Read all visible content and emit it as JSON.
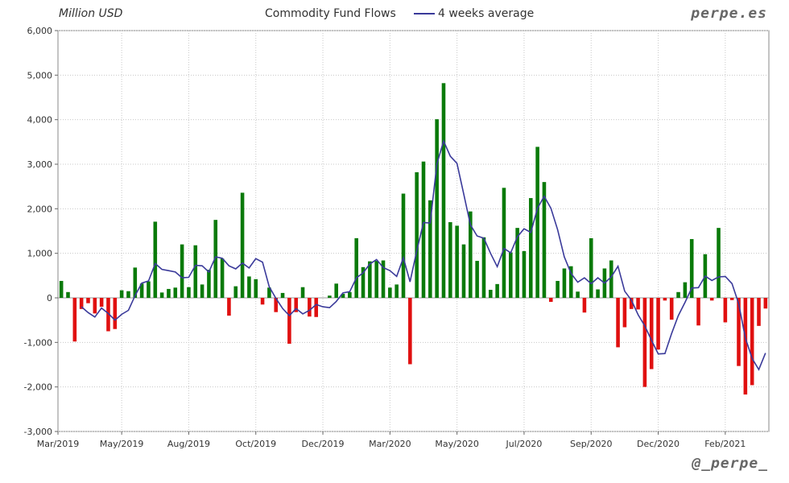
{
  "unit_label": "Million USD",
  "title": "Commodity Fund Flows",
  "legend_label": "4 weeks average",
  "brand_top": "perpe.es",
  "brand_bottom": "@_perpe_",
  "colors": {
    "positive": "#0a7a0a",
    "negative": "#e01010",
    "line": "#3a3a9a",
    "grid": "#c8c8c8"
  },
  "chart_data": {
    "type": "bar",
    "title": "Commodity Fund Flows",
    "ylabel": "Million USD",
    "ylim": [
      -3000,
      6000
    ],
    "yticks": [
      "-3,000",
      "-2,000",
      "-1,000",
      "0",
      "1,000",
      "2,000",
      "3,000",
      "4,000",
      "5,000",
      "6,000"
    ],
    "ytick_values": [
      -3000,
      -2000,
      -1000,
      0,
      1000,
      2000,
      3000,
      4000,
      5000,
      6000
    ],
    "xticks": [
      {
        "label": "Mar/2019",
        "week": 0
      },
      {
        "label": "May/2019",
        "week": 9.5
      },
      {
        "label": "Aug/2019",
        "week": 19.5
      },
      {
        "label": "Oct/2019",
        "week": 29.5
      },
      {
        "label": "Dec/2019",
        "week": 39.5
      },
      {
        "label": "Mar/2020",
        "week": 49.5
      },
      {
        "label": "May/2020",
        "week": 59.5
      },
      {
        "label": "Jul/2020",
        "week": 69.5
      },
      {
        "label": "Sep/2020",
        "week": 79.5
      },
      {
        "label": "Dec/2020",
        "week": 89.5
      },
      {
        "label": "Feb/2021",
        "week": 99.5
      }
    ],
    "series": [
      {
        "name": "",
        "values": [
          380,
          130,
          -980,
          -250,
          -120,
          -350,
          -200,
          -750,
          -700,
          170,
          150,
          680,
          320,
          370,
          1710,
          120,
          200,
          230,
          1200,
          240,
          1180,
          300,
          630,
          1750,
          880,
          -400,
          260,
          2360,
          480,
          420,
          -150,
          230,
          -320,
          110,
          -1030,
          -320,
          240,
          -420,
          -430,
          0,
          50,
          320,
          90,
          130,
          1340,
          690,
          820,
          830,
          840,
          230,
          300,
          2340,
          -1490,
          2820,
          3060,
          2190,
          4010,
          4820,
          1700,
          1620,
          1200,
          1940,
          830,
          1360,
          180,
          310,
          2470,
          1020,
          1570,
          1050,
          2240,
          3390,
          2600,
          -90,
          380,
          660,
          710,
          140,
          -330,
          1340,
          190,
          660,
          840,
          -1110,
          -660,
          -250,
          -260,
          -2000,
          -1600,
          -1160,
          -60,
          -490,
          130,
          350,
          1320,
          -620,
          980,
          -60,
          1570,
          -550,
          -50,
          -1530,
          -2170,
          -1960,
          -630,
          -240
        ]
      },
      {
        "name": "4 weeks average",
        "values": [
          null,
          null,
          null,
          -200,
          -330,
          -430,
          -230,
          -350,
          -500,
          -370,
          -280,
          50,
          330,
          380,
          770,
          640,
          610,
          580,
          450,
          460,
          730,
          720,
          580,
          920,
          890,
          720,
          650,
          780,
          670,
          880,
          800,
          250,
          -10,
          -240,
          -400,
          -240,
          -360,
          -280,
          -150,
          -200,
          -220,
          -80,
          110,
          140,
          450,
          560,
          760,
          860,
          680,
          610,
          480,
          900,
          360,
          1060,
          1690,
          1680,
          3010,
          3520,
          3180,
          3020,
          2330,
          1640,
          1390,
          1340,
          1000,
          700,
          1110,
          1010,
          1370,
          1550,
          1470,
          2010,
          2280,
          2010,
          1530,
          920,
          550,
          350,
          450,
          320,
          450,
          330,
          470,
          710,
          150,
          -50,
          -380,
          -630,
          -950,
          -1260,
          -1250,
          -800,
          -400,
          -100,
          220,
          230,
          490,
          390,
          470,
          480,
          320,
          -130,
          -900,
          -1360,
          -1610,
          -1240
        ]
      }
    ]
  }
}
